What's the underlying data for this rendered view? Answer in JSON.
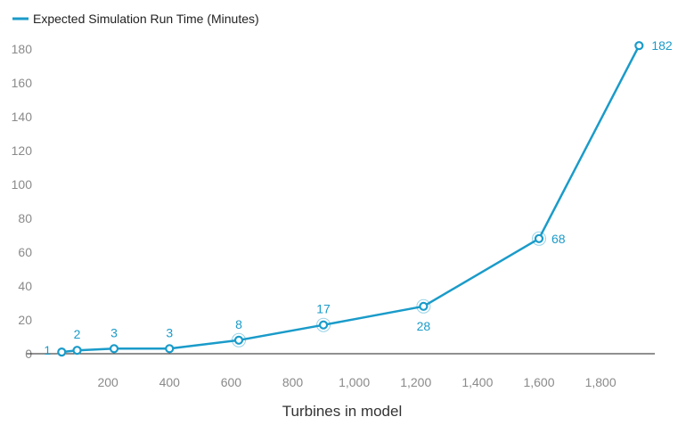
{
  "chart_data": {
    "type": "line",
    "title": "",
    "xlabel": "Turbines in model",
    "ylabel": "",
    "xlim": [
      0,
      1950
    ],
    "ylim": [
      0,
      190
    ],
    "xticks": [
      200,
      400,
      600,
      800,
      1000,
      1200,
      1400,
      1600,
      1800
    ],
    "xtick_labels": [
      "200",
      "400",
      "600",
      "800",
      "1,000",
      "1,200",
      "1,400",
      "1,600",
      "1,800"
    ],
    "yticks": [
      0,
      20,
      40,
      60,
      80,
      100,
      120,
      140,
      160,
      180
    ],
    "ytick_labels": [
      "0",
      "20",
      "40",
      "60",
      "80",
      "100",
      "120",
      "140",
      "160",
      "180"
    ],
    "grid": false,
    "legend_position": "top-left",
    "series": [
      {
        "name": "Expected Simulation Run Time (Minutes)",
        "color": "#1a9bc9",
        "x": [
          50,
          100,
          220,
          400,
          625,
          900,
          1225,
          1600,
          1925
        ],
        "y": [
          1,
          2,
          3,
          3,
          8,
          17,
          28,
          68,
          182
        ],
        "labels": [
          "1",
          "2",
          "3",
          "3",
          "8",
          "17",
          "28",
          "68",
          "182"
        ]
      }
    ]
  }
}
